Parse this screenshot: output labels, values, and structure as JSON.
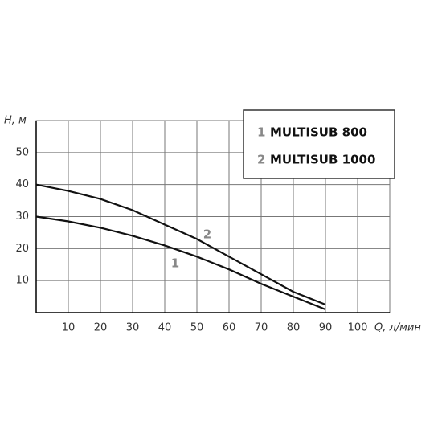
{
  "chart_data": {
    "type": "line",
    "y_label": "H, м",
    "x_label": "Q, л/мин",
    "x": [
      0,
      10,
      20,
      30,
      40,
      50,
      60,
      70,
      80,
      90
    ],
    "series": [
      {
        "label": "1",
        "name": "MULTISUB 800",
        "color": "#111111",
        "values": [
          30,
          28.5,
          26.5,
          24,
          21,
          17.5,
          13.5,
          9,
          5,
          1
        ]
      },
      {
        "label": "2",
        "name": "MULTISUB 1000",
        "color": "#111111",
        "values": [
          40,
          38,
          35.5,
          32,
          27.5,
          23,
          17.5,
          12,
          6.5,
          2.5
        ]
      }
    ],
    "xlim": [
      0,
      110
    ],
    "ylim": [
      0,
      60
    ],
    "xticks": [
      10,
      20,
      30,
      40,
      50,
      60,
      70,
      80,
      90,
      100
    ],
    "yticks": [
      10,
      20,
      30,
      40,
      50
    ],
    "grid": true
  }
}
